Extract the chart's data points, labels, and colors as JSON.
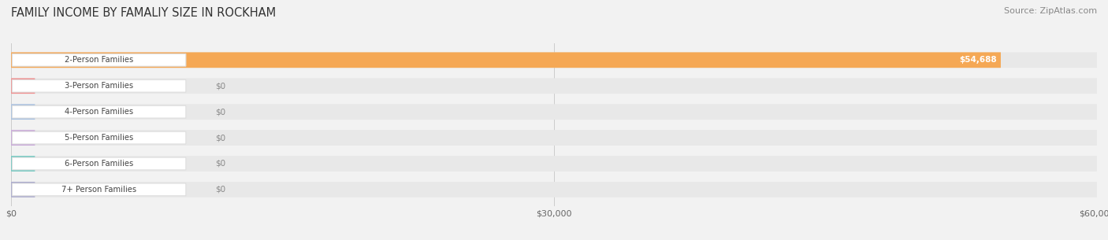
{
  "title": "FAMILY INCOME BY FAMALIY SIZE IN ROCKHAM",
  "source": "Source: ZipAtlas.com",
  "categories": [
    "2-Person Families",
    "3-Person Families",
    "4-Person Families",
    "5-Person Families",
    "6-Person Families",
    "7+ Person Families"
  ],
  "values": [
    54688,
    0,
    0,
    0,
    0,
    0
  ],
  "bar_colors": [
    "#F5A855",
    "#F09090",
    "#A8C0E0",
    "#C8A8D8",
    "#70C8C0",
    "#AAAACC"
  ],
  "xlim": [
    0,
    60000
  ],
  "xticks": [
    0,
    30000,
    60000
  ],
  "xtick_labels": [
    "$0",
    "$30,000",
    "$60,000"
  ],
  "background_color": "#F2F2F2",
  "bar_background_color": "#E8E8E8",
  "title_fontsize": 10.5,
  "source_fontsize": 8,
  "bar_height": 0.6,
  "figsize": [
    14.06,
    3.05
  ],
  "dpi": 100
}
